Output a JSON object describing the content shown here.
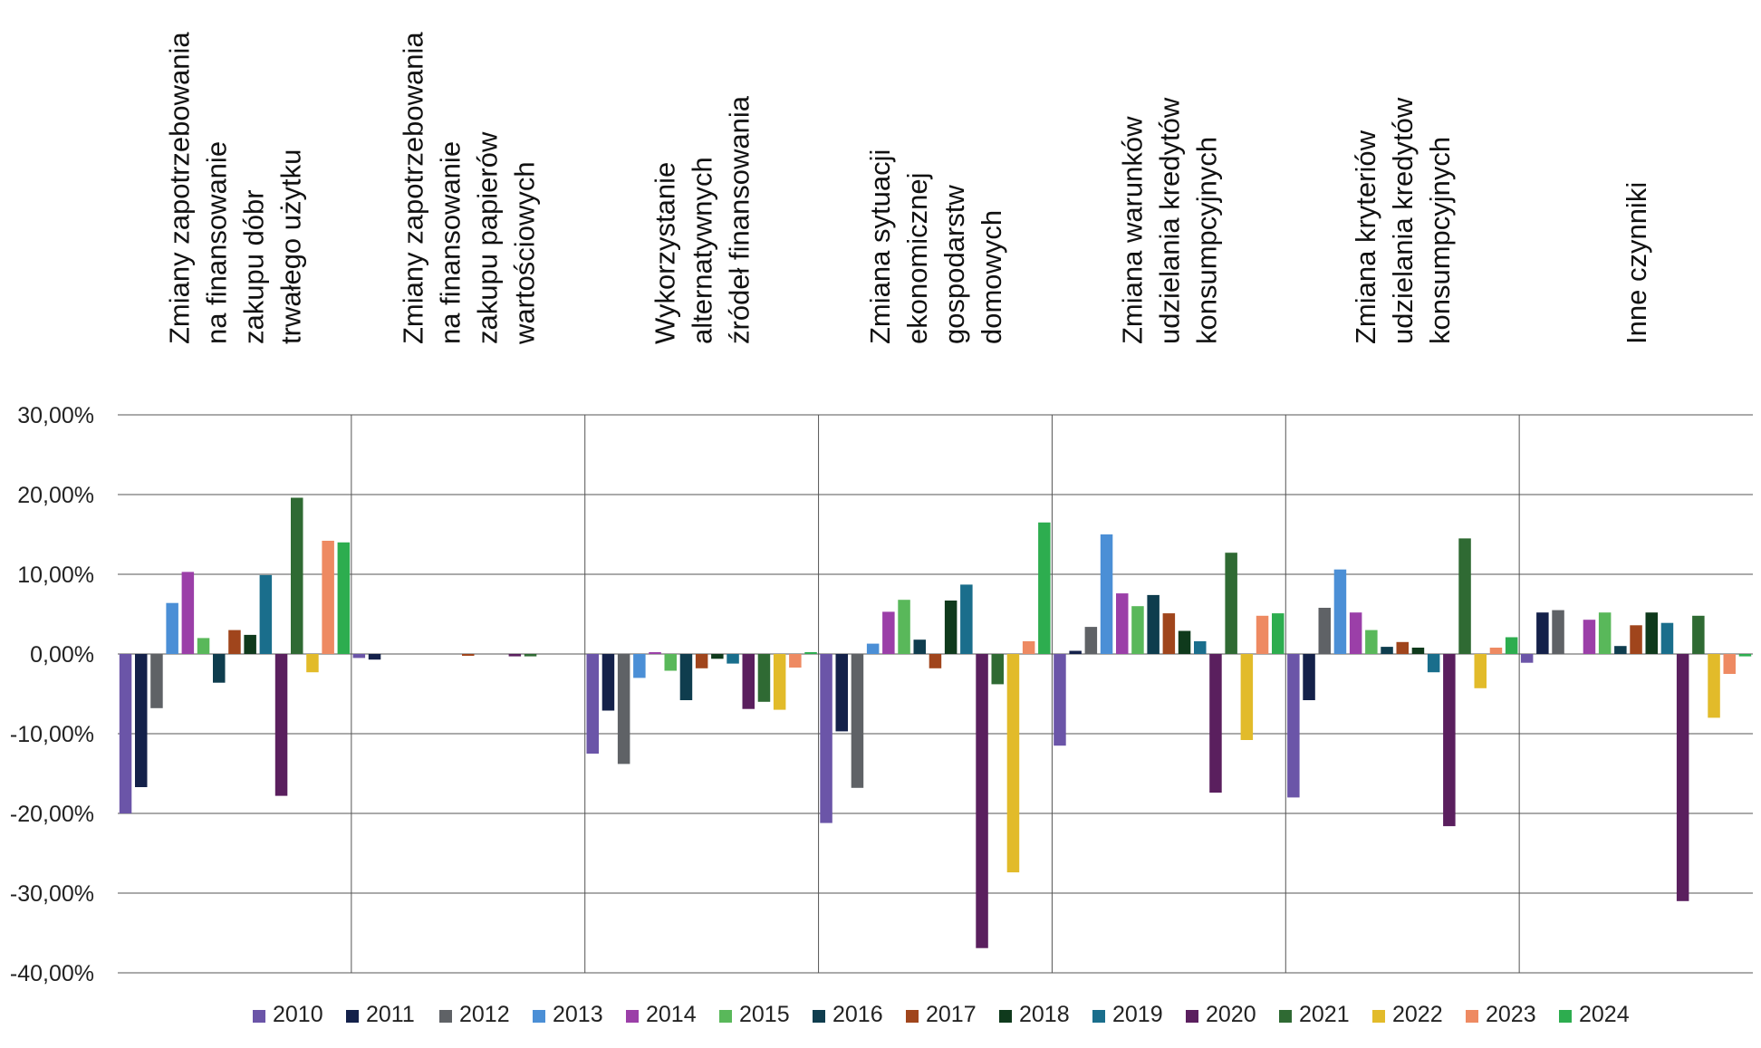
{
  "chart_data": {
    "type": "bar",
    "title": "",
    "xlabel": "",
    "ylabel": "",
    "ylim": [
      -40,
      30
    ],
    "yticks": [
      30,
      20,
      10,
      0,
      -10,
      -20,
      -30,
      -40
    ],
    "ytick_labels": [
      "30,00%",
      "20,00%",
      "10,00%",
      "0,00%",
      "-10,00%",
      "-20,00%",
      "-30,00%",
      "-40,00%"
    ],
    "grid": true,
    "legend_position": "bottom",
    "categories": [
      "Zmiany zapotrzebowania na finansowanie zakupu dóbr trwałego użytku",
      "Zmiany zapotrzebowania na finansowanie zakupu papierów wartościowych",
      "Wykorzystanie alternatywnych źródeł finansowania",
      "Zmiana sytuacji ekonomicznej gospodarstw domowych",
      "Zmiana warunków udzielania kredytów konsumpcyjnych",
      "Zmiana kryteriów udzielania kredytów konsumpcyjnych",
      "Inne czynniki"
    ],
    "category_label_lines": [
      [
        "Zmiany zapotrzebowania",
        "na finansowanie",
        "zakupu dóbr",
        "trwałego użytku"
      ],
      [
        "Zmiany zapotrzebowania",
        "na finansowanie",
        "zakupu papierów",
        "wartościowych"
      ],
      [
        "Wykorzystanie",
        "alternatywnych",
        "źródeł finansowania"
      ],
      [
        "Zmiana sytuacji",
        "ekonomicznej",
        "gospodarstw",
        "domowych"
      ],
      [
        "Zmiana warunków",
        "udzielania kredytów",
        "konsumpcyjnych"
      ],
      [
        "Zmiana kryteriów",
        "udzielania kredytów",
        "konsumpcyjnych"
      ],
      [
        "Inne czynniki"
      ]
    ],
    "series": [
      {
        "name": "2010",
        "color": "#6b55a8",
        "values": [
          -20.0,
          -0.5,
          -12.5,
          -21.2,
          -11.5,
          -18.0,
          -1.1
        ]
      },
      {
        "name": "2011",
        "color": "#14214a",
        "values": [
          -16.7,
          -0.7,
          -7.1,
          -9.7,
          0.4,
          -5.8,
          5.2
        ]
      },
      {
        "name": "2012",
        "color": "#5f6266",
        "values": [
          -6.8,
          0.0,
          -13.8,
          -16.8,
          3.4,
          5.8,
          5.5
        ]
      },
      {
        "name": "2013",
        "color": "#4b8fd6",
        "values": [
          6.4,
          0.0,
          -3.0,
          1.3,
          15.0,
          10.6,
          0.0
        ]
      },
      {
        "name": "2014",
        "color": "#9b3fa8",
        "values": [
          10.3,
          0.0,
          0.2,
          5.3,
          7.6,
          5.2,
          4.3
        ]
      },
      {
        "name": "2015",
        "color": "#59b85a",
        "values": [
          2.0,
          0.0,
          -2.1,
          6.8,
          6.0,
          3.0,
          5.2
        ]
      },
      {
        "name": "2016",
        "color": "#0f3d4e",
        "values": [
          -3.6,
          0.0,
          -5.8,
          1.8,
          7.4,
          0.9,
          1.0
        ]
      },
      {
        "name": "2017",
        "color": "#a0451c",
        "values": [
          3.0,
          -0.2,
          -1.8,
          -1.8,
          5.1,
          1.5,
          3.6
        ]
      },
      {
        "name": "2018",
        "color": "#0f3a1c",
        "values": [
          2.4,
          0.0,
          -0.6,
          6.7,
          2.9,
          0.8,
          5.2
        ]
      },
      {
        "name": "2019",
        "color": "#1a6e8c",
        "values": [
          9.9,
          0.0,
          -1.2,
          8.7,
          1.6,
          -2.3,
          3.9
        ]
      },
      {
        "name": "2020",
        "color": "#5a1f5e",
        "values": [
          -17.8,
          -0.3,
          -6.9,
          -36.9,
          -17.4,
          -21.6,
          -31.0
        ]
      },
      {
        "name": "2021",
        "color": "#2f6a33",
        "values": [
          19.6,
          -0.3,
          -6.0,
          -3.8,
          12.7,
          14.5,
          4.8
        ]
      },
      {
        "name": "2022",
        "color": "#e2bb2a",
        "values": [
          -2.3,
          0.0,
          -7.0,
          -27.4,
          -10.8,
          -4.3,
          -8.0
        ]
      },
      {
        "name": "2023",
        "color": "#ee8a62",
        "values": [
          14.2,
          0.0,
          -1.7,
          1.6,
          4.8,
          0.8,
          -2.5
        ]
      },
      {
        "name": "2024",
        "color": "#2dad4f",
        "values": [
          14.0,
          0.0,
          0.2,
          16.5,
          5.1,
          2.1,
          -0.3
        ]
      }
    ]
  }
}
